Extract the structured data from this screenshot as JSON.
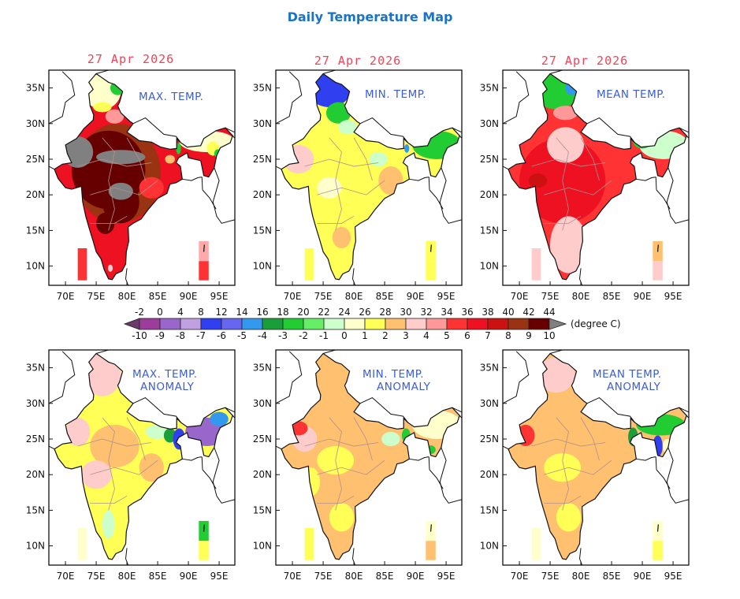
{
  "page_title": "Daily Temperature Map",
  "date": "27 Apr 2026",
  "lat_ticks": [
    "35N",
    "30N",
    "25N",
    "20N",
    "15N",
    "10N"
  ],
  "lon_ticks": [
    "70E",
    "75E",
    "80E",
    "85E",
    "90E",
    "95E"
  ],
  "panels": [
    {
      "title": [
        "MAX. TEMP."
      ]
    },
    {
      "title": [
        "MIN. TEMP."
      ]
    },
    {
      "title": [
        "MEAN TEMP."
      ]
    },
    {
      "title": [
        "MAX. TEMP.",
        "ANOMALY"
      ]
    },
    {
      "title": [
        "MIN. TEMP.",
        "ANOMALY"
      ]
    },
    {
      "title": [
        "MEAN TEMP.",
        "ANOMALY"
      ]
    }
  ],
  "colorbar": {
    "unit_label": "(degree C)",
    "temp_labels": [
      "-2",
      "0",
      "4",
      "8",
      "12",
      "14",
      "16",
      "18",
      "20",
      "22",
      "24",
      "26",
      "28",
      "30",
      "32",
      "34",
      "36",
      "38",
      "40",
      "42",
      "44"
    ],
    "anomaly_labels": [
      "-10",
      "-9",
      "-8",
      "-7",
      "-6",
      "-5",
      "-4",
      "-3",
      "-2",
      "-1",
      "0",
      "1",
      "2",
      "3",
      "4",
      "5",
      "6",
      "7",
      "8",
      "9",
      "10"
    ],
    "colors": [
      "#9c3d9c",
      "#9966cc",
      "#c0a0e0",
      "#3040f0",
      "#6666ee",
      "#3399ee",
      "#1a9e3a",
      "#22cc33",
      "#66ee66",
      "#ccffcc",
      "#ffffcc",
      "#ffff55",
      "#ffc070",
      "#ffcccc",
      "#ff9999",
      "#ff3333",
      "#ee1122",
      "#cc1111",
      "#993311",
      "#660000"
    ],
    "under_color": "#6b3a6b",
    "over_color": "#808080"
  }
}
